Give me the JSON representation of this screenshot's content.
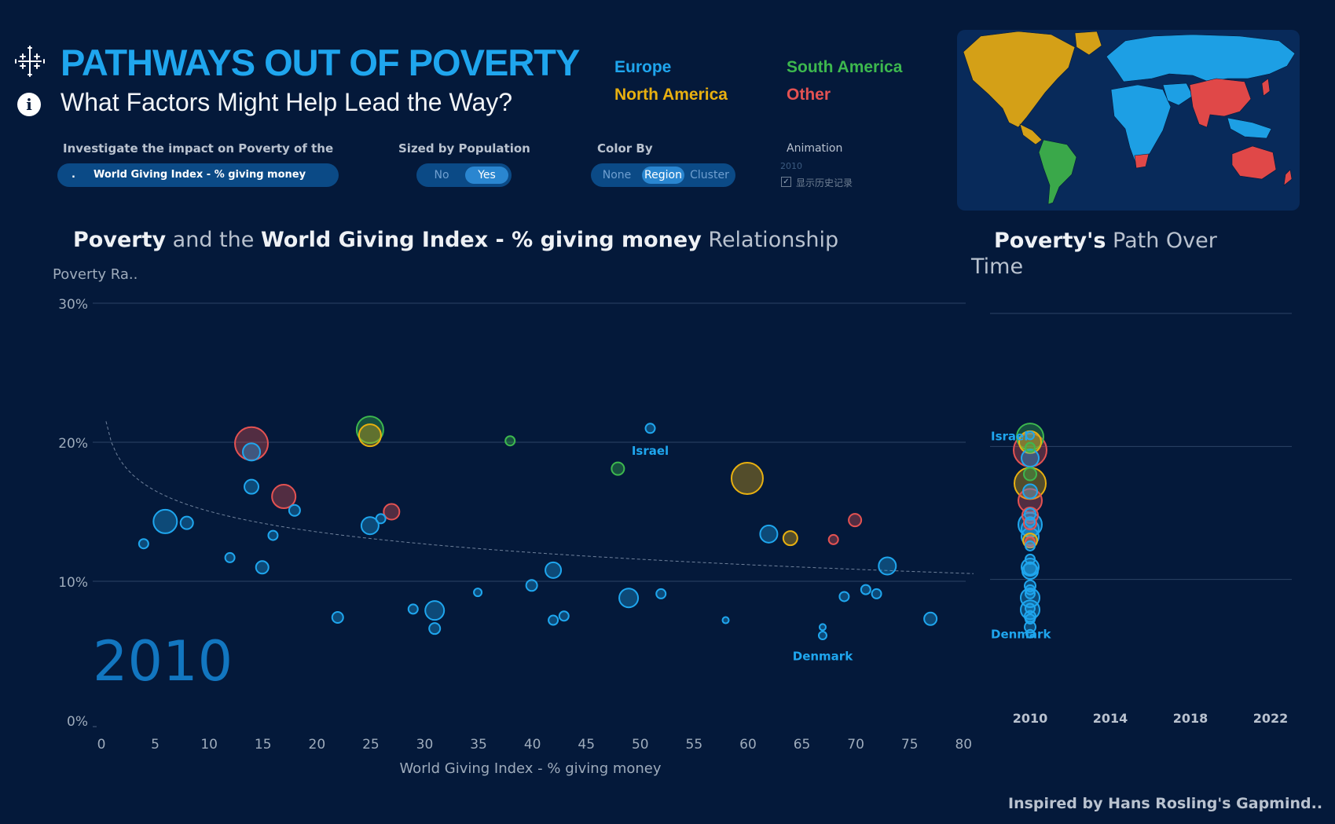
{
  "header": {
    "title": "PATHWAYS OUT OF POVERTY",
    "subtitle": "What Factors Might Help Lead the Way?",
    "info_icon": "i"
  },
  "legend": {
    "items": [
      {
        "label": "Europe",
        "color": "#1fa6ee"
      },
      {
        "label": "South America",
        "color": "#3db84e"
      },
      {
        "label": "North America",
        "color": "#e8b010"
      },
      {
        "label": "Other",
        "color": "#e45252"
      }
    ]
  },
  "controls": {
    "measure_label": "Investigate the impact on Poverty of the",
    "measure_value": "World Giving Index - % giving money",
    "measure_dot": ".",
    "sized_label": "Sized by Population",
    "sized_options": [
      "No",
      "Yes"
    ],
    "sized_selected": "Yes",
    "color_label": "Color By",
    "color_options": [
      "None",
      "Region",
      "Cluster"
    ],
    "color_selected": "Region",
    "animation_label": "Animation",
    "animation_year": "2010",
    "history_check": "✓",
    "history_label": "显示历史记录"
  },
  "chart_title": {
    "b1": "Poverty",
    "t1": " and the ",
    "b2": "World Giving Index - % giving money",
    "t2": " Relationship"
  },
  "side_title": {
    "b1": "Poverty's",
    "t1": " Path Over",
    "t2": "Time"
  },
  "footer": "Inspired by Hans Rosling's Gapmind..",
  "colors": {
    "background": "#04193a",
    "europe": "#1fa6ee",
    "south_america": "#3db84e",
    "north_america": "#e8b010",
    "other": "#e45252"
  },
  "chart_data": [
    {
      "type": "scatter",
      "title": "",
      "xlabel": "World Giving Index - % giving money",
      "ylabel": "Poverty Ra..",
      "xlim": [
        0,
        81
      ],
      "ylim": [
        0,
        30
      ],
      "x_ticks": [
        "0",
        "5",
        "10",
        "15",
        "20",
        "25",
        "30",
        "35",
        "40",
        "45",
        "50",
        "55",
        "60",
        "65",
        "70",
        "75",
        "80"
      ],
      "y_ticks": [
        "0%",
        "10%",
        "20%",
        "30%"
      ],
      "grid": "horizontal",
      "year_watermark": "2010",
      "trendline": "dashed logarithmic decreasing",
      "annotations": [
        {
          "text": "Israel",
          "x": 51,
          "y": 19.9
        },
        {
          "text": "Denmark",
          "x": 67,
          "y": 5.1
        }
      ],
      "points": [
        {
          "x": 4,
          "y": 12.7,
          "region": "Europe",
          "size": 6
        },
        {
          "x": 6,
          "y": 14.3,
          "region": "Europe",
          "size": 15
        },
        {
          "x": 8,
          "y": 14.2,
          "region": "Europe",
          "size": 8
        },
        {
          "x": 12,
          "y": 11.7,
          "region": "Europe",
          "size": 6
        },
        {
          "x": 14,
          "y": 19.9,
          "region": "Other",
          "size": 21
        },
        {
          "x": 14,
          "y": 19.3,
          "region": "Europe",
          "size": 11
        },
        {
          "x": 14,
          "y": 16.8,
          "region": "Europe",
          "size": 9
        },
        {
          "x": 15,
          "y": 11.0,
          "region": "Europe",
          "size": 8
        },
        {
          "x": 16,
          "y": 13.3,
          "region": "Europe",
          "size": 6
        },
        {
          "x": 17,
          "y": 16.1,
          "region": "Other",
          "size": 15
        },
        {
          "x": 18,
          "y": 15.1,
          "region": "Europe",
          "size": 7
        },
        {
          "x": 22,
          "y": 7.4,
          "region": "Europe",
          "size": 7
        },
        {
          "x": 25,
          "y": 20.9,
          "region": "South America",
          "size": 17
        },
        {
          "x": 25,
          "y": 20.5,
          "region": "North America",
          "size": 14
        },
        {
          "x": 25,
          "y": 14.0,
          "region": "Europe",
          "size": 11
        },
        {
          "x": 26,
          "y": 14.5,
          "region": "Europe",
          "size": 6
        },
        {
          "x": 27,
          "y": 15.0,
          "region": "Other",
          "size": 10
        },
        {
          "x": 29,
          "y": 8.0,
          "region": "Europe",
          "size": 6
        },
        {
          "x": 31,
          "y": 7.9,
          "region": "Europe",
          "size": 12
        },
        {
          "x": 31,
          "y": 6.6,
          "region": "Europe",
          "size": 7
        },
        {
          "x": 35,
          "y": 9.2,
          "region": "Europe",
          "size": 5
        },
        {
          "x": 38,
          "y": 20.1,
          "region": "South America",
          "size": 6
        },
        {
          "x": 40,
          "y": 9.7,
          "region": "Europe",
          "size": 7
        },
        {
          "x": 42,
          "y": 10.8,
          "region": "Europe",
          "size": 10
        },
        {
          "x": 42,
          "y": 7.2,
          "region": "Europe",
          "size": 6
        },
        {
          "x": 43,
          "y": 7.5,
          "region": "Europe",
          "size": 6
        },
        {
          "x": 48,
          "y": 18.1,
          "region": "South America",
          "size": 8
        },
        {
          "x": 49,
          "y": 8.8,
          "region": "Europe",
          "size": 12
        },
        {
          "x": 51,
          "y": 21.0,
          "region": "Europe",
          "size": 6
        },
        {
          "x": 52,
          "y": 9.1,
          "region": "Europe",
          "size": 6
        },
        {
          "x": 58,
          "y": 7.2,
          "region": "Europe",
          "size": 4
        },
        {
          "x": 60,
          "y": 17.4,
          "region": "North America",
          "size": 20
        },
        {
          "x": 62,
          "y": 13.4,
          "region": "Europe",
          "size": 11
        },
        {
          "x": 64,
          "y": 13.1,
          "region": "North America",
          "size": 9
        },
        {
          "x": 67,
          "y": 6.7,
          "region": "Europe",
          "size": 4
        },
        {
          "x": 67,
          "y": 6.1,
          "region": "Europe",
          "size": 5
        },
        {
          "x": 68,
          "y": 13.0,
          "region": "Other",
          "size": 6
        },
        {
          "x": 69,
          "y": 8.9,
          "region": "Europe",
          "size": 6
        },
        {
          "x": 70,
          "y": 14.4,
          "region": "Other",
          "size": 8
        },
        {
          "x": 71,
          "y": 9.4,
          "region": "Europe",
          "size": 6
        },
        {
          "x": 72,
          "y": 9.1,
          "region": "Europe",
          "size": 6
        },
        {
          "x": 73,
          "y": 11.1,
          "region": "Europe",
          "size": 11
        },
        {
          "x": 77,
          "y": 7.3,
          "region": "Europe",
          "size": 8
        }
      ]
    },
    {
      "type": "scatter",
      "title": "",
      "x_ticks": [
        "2010",
        "2014",
        "2018",
        "2022"
      ],
      "xlim": [
        2010,
        2022
      ],
      "ylim": [
        0,
        30
      ],
      "grid": "horizontal",
      "annotations": [
        {
          "text": "Israel",
          "x": 2010,
          "y": 21.0
        },
        {
          "text": "Denmark",
          "x": 2010,
          "y": 6.1
        }
      ],
      "points": [
        {
          "x": 2010,
          "y": 21.0,
          "region": "Europe",
          "size": 5
        },
        {
          "x": 2010,
          "y": 20.9,
          "region": "South America",
          "size": 17
        },
        {
          "x": 2010,
          "y": 20.5,
          "region": "North America",
          "size": 14
        },
        {
          "x": 2010,
          "y": 20.1,
          "region": "South America",
          "size": 6
        },
        {
          "x": 2010,
          "y": 19.9,
          "region": "Other",
          "size": 21
        },
        {
          "x": 2010,
          "y": 19.3,
          "region": "Europe",
          "size": 11
        },
        {
          "x": 2010,
          "y": 18.1,
          "region": "South America",
          "size": 8
        },
        {
          "x": 2010,
          "y": 17.4,
          "region": "North America",
          "size": 20
        },
        {
          "x": 2010,
          "y": 16.8,
          "region": "Europe",
          "size": 9
        },
        {
          "x": 2010,
          "y": 16.1,
          "region": "Other",
          "size": 15
        },
        {
          "x": 2010,
          "y": 15.1,
          "region": "Europe",
          "size": 7
        },
        {
          "x": 2010,
          "y": 15.0,
          "region": "Other",
          "size": 10
        },
        {
          "x": 2010,
          "y": 14.5,
          "region": "Europe",
          "size": 6
        },
        {
          "x": 2010,
          "y": 14.4,
          "region": "Other",
          "size": 8
        },
        {
          "x": 2010,
          "y": 14.3,
          "region": "Europe",
          "size": 15
        },
        {
          "x": 2010,
          "y": 14.0,
          "region": "Europe",
          "size": 11
        },
        {
          "x": 2010,
          "y": 13.4,
          "region": "Europe",
          "size": 11
        },
        {
          "x": 2010,
          "y": 13.1,
          "region": "North America",
          "size": 9
        },
        {
          "x": 2010,
          "y": 13.0,
          "region": "Other",
          "size": 6
        },
        {
          "x": 2010,
          "y": 12.7,
          "region": "Europe",
          "size": 6
        },
        {
          "x": 2010,
          "y": 11.7,
          "region": "Europe",
          "size": 6
        },
        {
          "x": 2010,
          "y": 11.1,
          "region": "Europe",
          "size": 11
        },
        {
          "x": 2010,
          "y": 11.0,
          "region": "Europe",
          "size": 8
        },
        {
          "x": 2010,
          "y": 10.8,
          "region": "Europe",
          "size": 10
        },
        {
          "x": 2010,
          "y": 9.7,
          "region": "Europe",
          "size": 7
        },
        {
          "x": 2010,
          "y": 9.4,
          "region": "Europe",
          "size": 6
        },
        {
          "x": 2010,
          "y": 9.1,
          "region": "Europe",
          "size": 6
        },
        {
          "x": 2010,
          "y": 8.8,
          "region": "Europe",
          "size": 12
        },
        {
          "x": 2010,
          "y": 8.0,
          "region": "Europe",
          "size": 6
        },
        {
          "x": 2010,
          "y": 7.9,
          "region": "Europe",
          "size": 12
        },
        {
          "x": 2010,
          "y": 7.4,
          "region": "Europe",
          "size": 7
        },
        {
          "x": 2010,
          "y": 7.2,
          "region": "Europe",
          "size": 6
        },
        {
          "x": 2010,
          "y": 6.6,
          "region": "Europe",
          "size": 7
        },
        {
          "x": 2010,
          "y": 6.1,
          "region": "Europe",
          "size": 5
        }
      ]
    }
  ]
}
